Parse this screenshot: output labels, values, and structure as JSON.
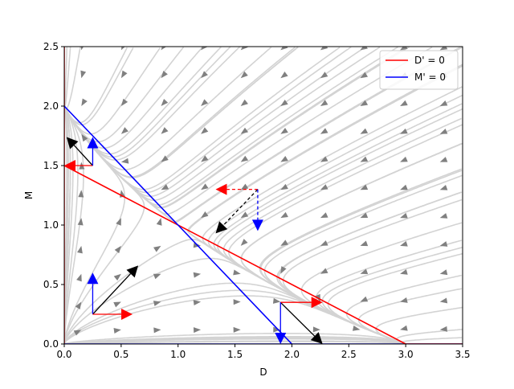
{
  "chart_data": {
    "type": "line",
    "title": "",
    "xlabel": "D",
    "ylabel": "M",
    "xlim": [
      0,
      3.5
    ],
    "ylim": [
      0,
      2.5
    ],
    "xticks": [
      "0.0",
      "0.5",
      "1.0",
      "1.5",
      "2.0",
      "2.5",
      "3.0",
      "3.5"
    ],
    "yticks": [
      "0.0",
      "0.5",
      "1.0",
      "1.5",
      "2.0",
      "2.5"
    ],
    "grid": false,
    "legend_position": "top-right",
    "series": [
      {
        "name": "D' = 0",
        "color": "#ff0000",
        "x": [
          0,
          3.0,
          3.5
        ],
        "y": [
          1.5,
          0,
          0
        ]
      },
      {
        "name": "M' = 0",
        "color": "#0000ff",
        "x": [
          0,
          1.0,
          2.0
        ],
        "y": [
          2.0,
          1.0,
          0
        ]
      }
    ],
    "extra_nullclines": [
      {
        "color": "#ff0000",
        "x": [
          0,
          0
        ],
        "y": [
          0,
          2.5
        ]
      },
      {
        "color": "#0000ff",
        "x": [
          0,
          3.5
        ],
        "y": [
          0,
          0
        ]
      }
    ],
    "streamline_color": "#d3d3d3",
    "quiver_color": "#808080",
    "vector_annotations": [
      {
        "from": [
          0.25,
          0.25
        ],
        "to": [
          0.65,
          0.66
        ],
        "color": "#000000",
        "style": "solid"
      },
      {
        "from": [
          0.25,
          0.25
        ],
        "to": [
          0.25,
          0.6
        ],
        "color": "#0000ff",
        "style": "solid"
      },
      {
        "from": [
          0.25,
          0.25
        ],
        "to": [
          0.6,
          0.25
        ],
        "color": "#ff0000",
        "style": "solid"
      },
      {
        "from": [
          0.25,
          1.5
        ],
        "to": [
          0.02,
          1.74
        ],
        "color": "#000000",
        "style": "solid"
      },
      {
        "from": [
          0.25,
          1.5
        ],
        "to": [
          0.0,
          1.5
        ],
        "color": "#ff0000",
        "style": "solid"
      },
      {
        "from": [
          0.25,
          1.5
        ],
        "to": [
          0.25,
          1.74
        ],
        "color": "#0000ff",
        "style": "solid"
      },
      {
        "from": [
          1.7,
          1.3
        ],
        "to": [
          1.33,
          0.93
        ],
        "color": "#000000",
        "style": "dashed"
      },
      {
        "from": [
          1.7,
          1.3
        ],
        "to": [
          1.33,
          1.3
        ],
        "color": "#ff0000",
        "style": "dashed"
      },
      {
        "from": [
          1.7,
          1.3
        ],
        "to": [
          1.7,
          0.95
        ],
        "color": "#0000ff",
        "style": "dashed"
      },
      {
        "from": [
          1.9,
          0.35
        ],
        "to": [
          2.27,
          0.0
        ],
        "color": "#000000",
        "style": "solid"
      },
      {
        "from": [
          1.9,
          0.35
        ],
        "to": [
          2.27,
          0.35
        ],
        "color": "#ff0000",
        "style": "solid"
      },
      {
        "from": [
          1.9,
          0.35
        ],
        "to": [
          1.9,
          0.0
        ],
        "color": "#0000ff",
        "style": "solid"
      }
    ]
  }
}
